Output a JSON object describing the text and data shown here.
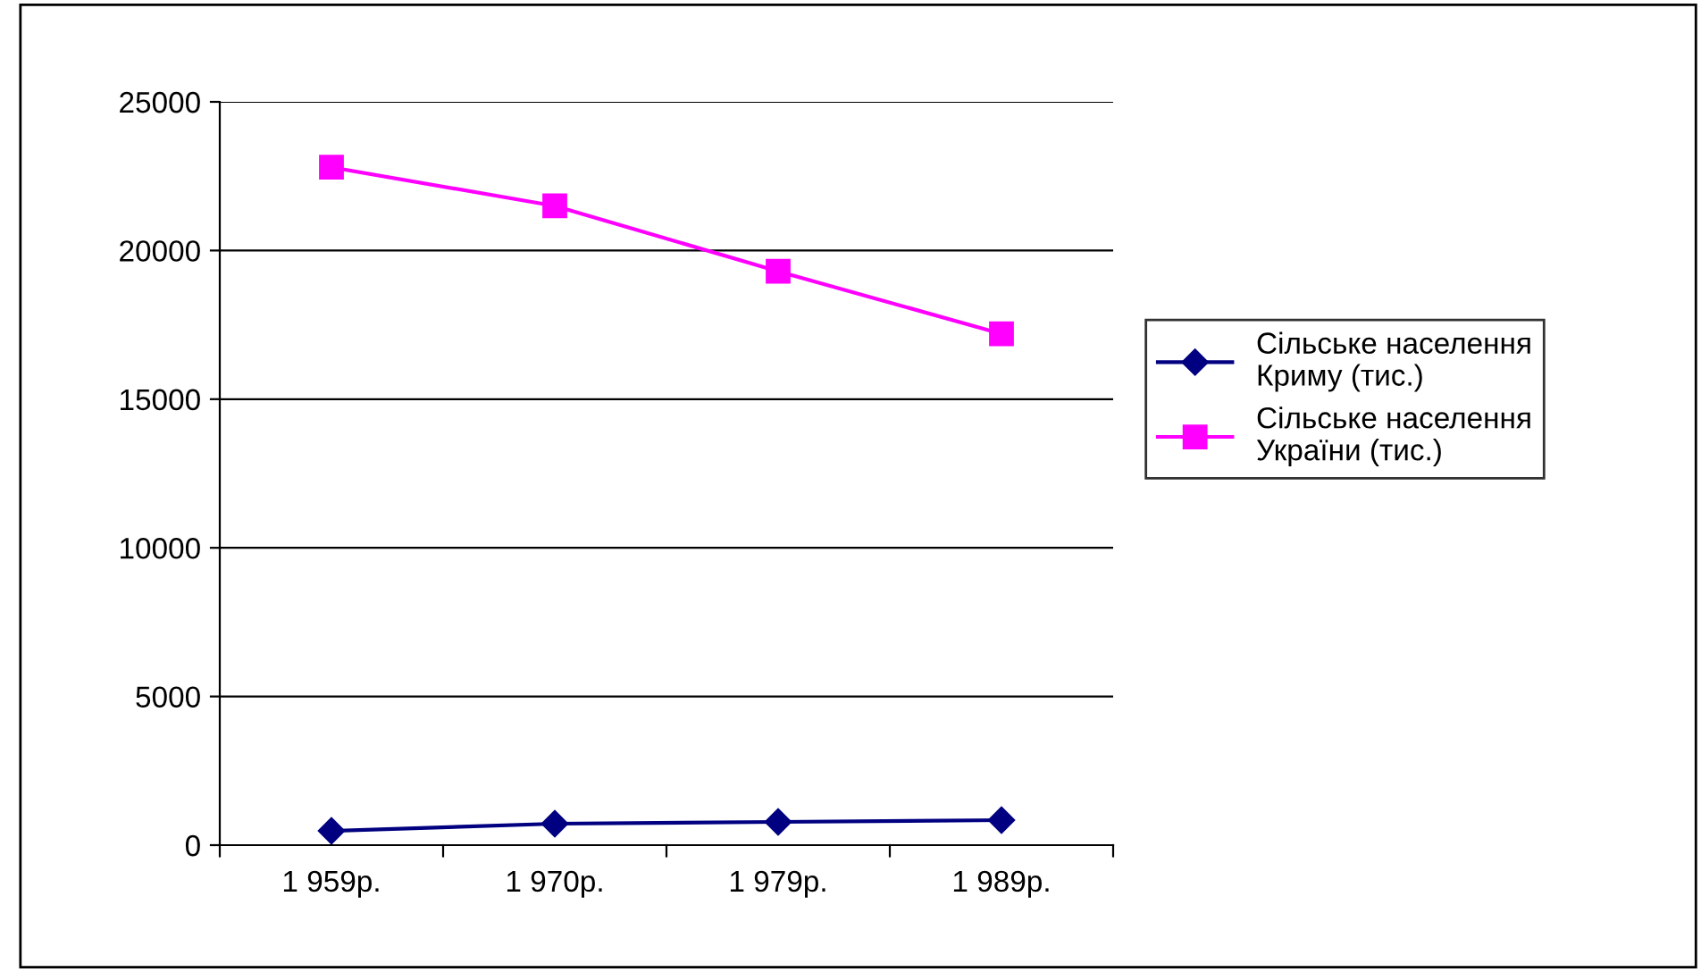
{
  "chart_data": {
    "type": "line",
    "categories": [
      "1 959р.",
      "1 970р.",
      "1 979р.",
      "1 989р."
    ],
    "series": [
      {
        "name": "Сільське населення Криму (тис.)",
        "color": "#000080",
        "marker": "diamond",
        "values": [
          480,
          720,
          780,
          840
        ]
      },
      {
        "name": "Сільське населення України (тис.)",
        "color": "#ff00ff",
        "marker": "square",
        "values": [
          22800,
          21500,
          19300,
          17200
        ]
      }
    ],
    "ylim": [
      0,
      25000
    ],
    "yticks": [
      0,
      5000,
      10000,
      15000,
      20000,
      25000
    ],
    "grid": "y",
    "legend": "right",
    "line_style": "solid"
  }
}
